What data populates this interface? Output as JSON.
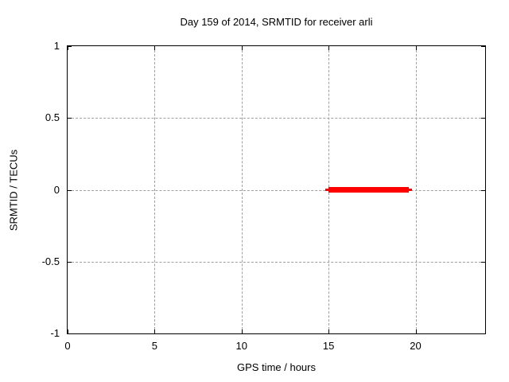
{
  "chart_data": {
    "type": "line",
    "title": "Day 159 of 2014, SRMTID for receiver arli",
    "xlabel": "GPS time / hours",
    "ylabel": "SRMTID / TECUs",
    "xlim": [
      0,
      24
    ],
    "ylim": [
      -1,
      1
    ],
    "x_ticks": [
      0,
      5,
      10,
      15,
      20
    ],
    "x_tick_labels": [
      "0",
      "5",
      "10",
      "15",
      "20"
    ],
    "y_ticks": [
      1,
      0.5,
      0,
      -0.5,
      -1
    ],
    "y_tick_labels": [
      "1",
      "0.5",
      "0",
      "-0.5",
      "-1"
    ],
    "grid": true,
    "grid_style": "dotted",
    "tick_style": "inward-mirrored",
    "legend": "none",
    "colors": {
      "background": "#ffffff",
      "border": "#000000",
      "grid": "#a0a0a0",
      "text": "#000000"
    },
    "series": [
      {
        "name": "SRMTID",
        "color": "#ff0000",
        "shape": "thick horizontal segment at constant y",
        "y": 0,
        "x_start": 15.0,
        "x_end": 19.6,
        "thin_extent": [
          14.8,
          19.8
        ],
        "points": [
          [
            15.0,
            0
          ],
          [
            19.6,
            0
          ]
        ]
      }
    ]
  }
}
